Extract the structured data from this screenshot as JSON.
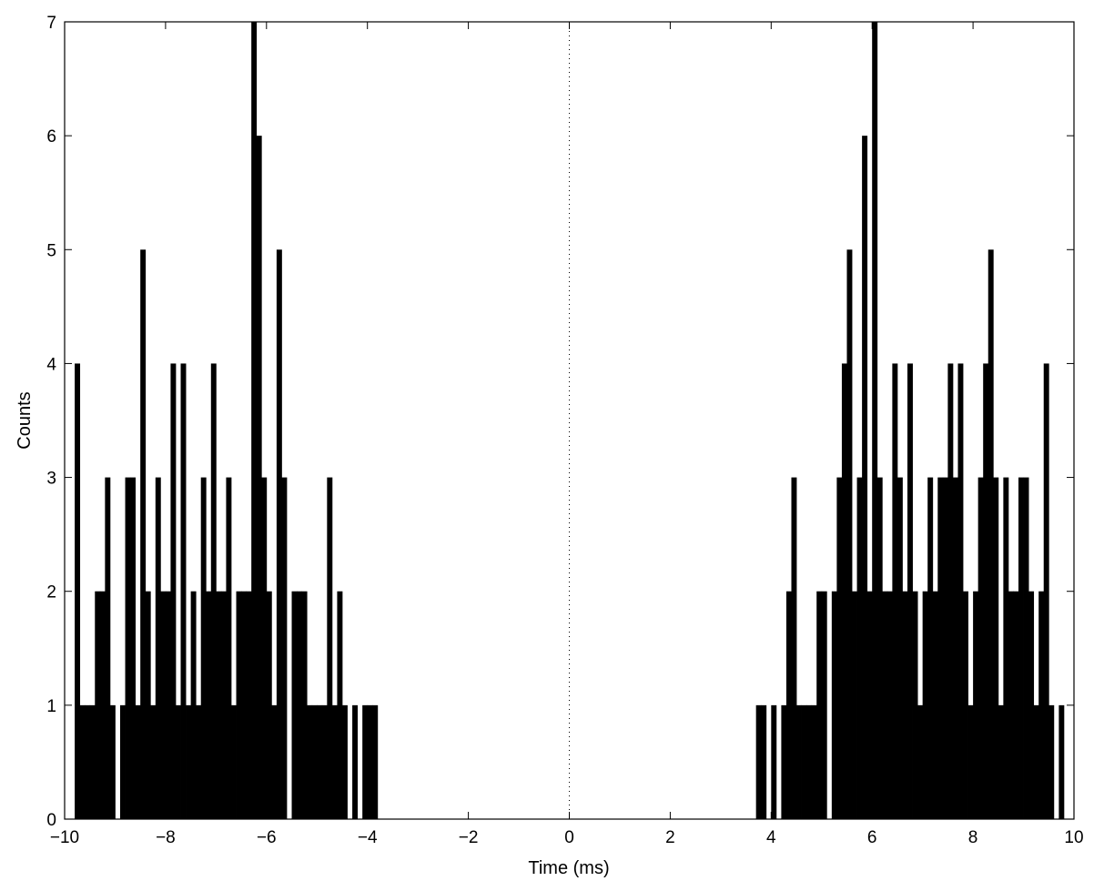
{
  "chart_data": {
    "type": "bar",
    "subtype": "histogram",
    "xlabel": "Time (ms)",
    "ylabel": "Counts",
    "xlim": [
      -10,
      10
    ],
    "ylim": [
      0,
      7
    ],
    "xticks": [
      -10,
      -8,
      -6,
      -4,
      -2,
      0,
      2,
      4,
      6,
      8,
      10
    ],
    "yticks": [
      0,
      1,
      2,
      3,
      4,
      5,
      6,
      7
    ],
    "xtick_labels": [
      "−10",
      "−8",
      "−6",
      "−4",
      "−2",
      "0",
      "2",
      "4",
      "6",
      "8",
      "10"
    ],
    "ytick_labels": [
      "0",
      "1",
      "2",
      "3",
      "4",
      "5",
      "6",
      "7"
    ],
    "bin_width": 0.1,
    "bin_left_edges": [
      -9.8,
      -9.7,
      -9.6,
      -9.5,
      -9.4,
      -9.3,
      -9.2,
      -9.1,
      -9.0,
      -8.9,
      -8.8,
      -8.7,
      -8.6,
      -8.5,
      -8.4,
      -8.3,
      -8.2,
      -8.1,
      -8.0,
      -7.9,
      -7.8,
      -7.7,
      -7.6,
      -7.5,
      -7.4,
      -7.3,
      -7.2,
      -7.1,
      -7.0,
      -6.9,
      -6.8,
      -6.7,
      -6.6,
      -6.5,
      -6.4,
      -6.3,
      -6.2,
      -6.1,
      -6.0,
      -5.9,
      -5.8,
      -5.7,
      -5.6,
      -5.5,
      -5.4,
      -5.3,
      -5.2,
      -5.1,
      -5.0,
      -4.9,
      -4.8,
      -4.7,
      -4.6,
      -4.5,
      -4.4,
      -4.3,
      -4.2,
      -4.1,
      -4.0,
      -3.9,
      -3.8,
      -3.7,
      3.7,
      3.8,
      3.9,
      4.0,
      4.1,
      4.2,
      4.3,
      4.4,
      4.5,
      4.6,
      4.7,
      4.8,
      4.9,
      5.0,
      5.1,
      5.2,
      5.3,
      5.4,
      5.5,
      5.6,
      5.7,
      5.8,
      5.9,
      6.0,
      6.1,
      6.2,
      6.3,
      6.4,
      6.5,
      6.6,
      6.7,
      6.8,
      6.9,
      7.0,
      7.1,
      7.2,
      7.3,
      7.4,
      7.5,
      7.6,
      7.7,
      7.8,
      7.9,
      8.0,
      8.1,
      8.2,
      8.3,
      8.4,
      8.5,
      8.6,
      8.7,
      8.8,
      8.9,
      9.0,
      9.1,
      9.2,
      9.3,
      9.4,
      9.5,
      9.6,
      9.7
    ],
    "values": [
      4,
      1,
      1,
      1,
      2,
      2,
      3,
      1,
      0,
      1,
      3,
      3,
      1,
      5,
      2,
      1,
      3,
      2,
      2,
      4,
      1,
      4,
      1,
      2,
      1,
      3,
      2,
      4,
      2,
      2,
      3,
      1,
      2,
      2,
      2,
      7,
      6,
      3,
      2,
      1,
      5,
      3,
      0,
      2,
      2,
      2,
      1,
      1,
      1,
      1,
      3,
      1,
      2,
      1,
      0,
      1,
      0,
      1,
      1,
      1,
      0,
      0,
      1,
      1,
      0,
      1,
      0,
      1,
      2,
      3,
      1,
      1,
      1,
      1,
      2,
      2,
      0,
      2,
      3,
      4,
      5,
      2,
      3,
      6,
      2,
      7,
      3,
      2,
      2,
      4,
      3,
      2,
      4,
      2,
      1,
      2,
      3,
      2,
      3,
      3,
      4,
      3,
      4,
      2,
      1,
      2,
      3,
      4,
      5,
      3,
      1,
      3,
      2,
      2,
      3,
      3,
      2,
      1,
      2,
      4,
      1,
      0,
      1
    ],
    "reference_line": {
      "x": 0,
      "style": "dotted"
    },
    "grid": false,
    "legend": "none",
    "bar_color": "#000000"
  }
}
